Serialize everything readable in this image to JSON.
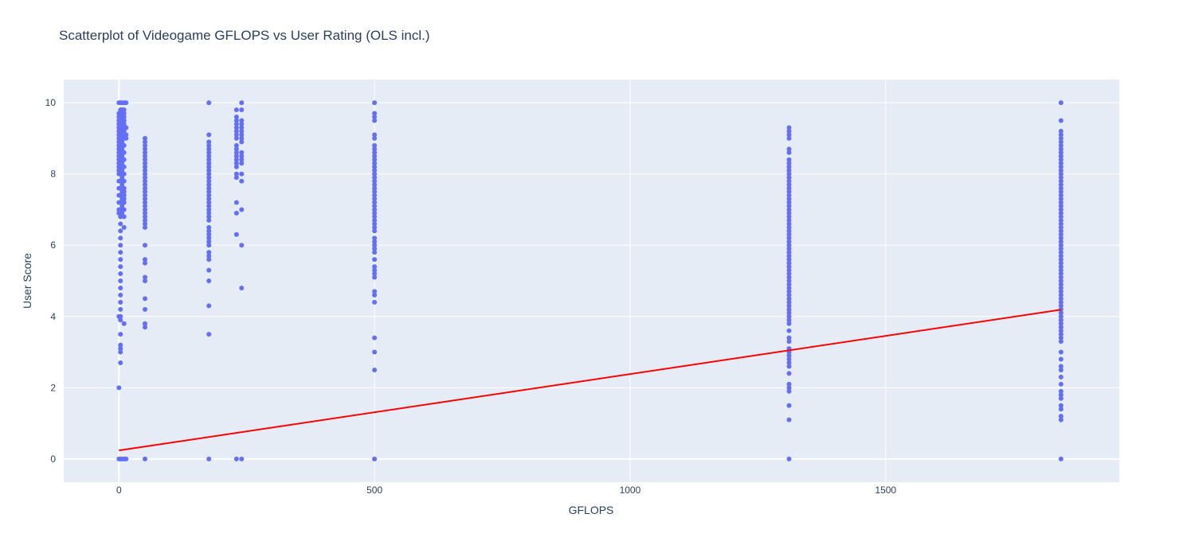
{
  "chart_data": {
    "type": "scatter",
    "title": "Scatterplot of Videogame GFLOPS vs User Rating (OLS incl.)",
    "xlabel": "GFLOPS",
    "ylabel": "User Score",
    "xlim": [
      -108,
      1957
    ],
    "ylim": [
      -0.65,
      10.65
    ],
    "x_ticks": [
      0,
      500,
      1000,
      1500
    ],
    "y_ticks": [
      0,
      2,
      4,
      6,
      8,
      10
    ],
    "grid": true,
    "legend": "none",
    "colors": {
      "plot_bg": "#e5ecf6",
      "grid": "#ffffff",
      "points": "#636efa",
      "trendline": "#ff0000",
      "text": "#2a3f5f"
    },
    "series": [
      {
        "type": "scatter",
        "groups": [
          {
            "x": 0,
            "y": [
              10,
              9.7,
              9.6,
              9.5,
              9.4,
              9.3,
              9.2,
              9.1,
              9.0,
              8.9,
              8.8,
              8.7,
              8.6,
              8.5,
              8.4,
              8.3,
              8.2,
              8.1,
              8.0,
              7.8,
              7.6,
              7.4,
              7.2,
              7.0,
              6.9,
              4.0,
              2.0,
              0
            ]
          },
          {
            "x": 3,
            "y": [
              10,
              9.8,
              9.6,
              9.4,
              9.2,
              9.0,
              8.8,
              8.6,
              8.4,
              8.2,
              8.0,
              7.8,
              7.6,
              7.4,
              7.2,
              7.0,
              6.8,
              6.6,
              6.4,
              6.2,
              6.0,
              5.8,
              5.6,
              5.4,
              5.2,
              5.0,
              4.8,
              4.6,
              4.4,
              4.2,
              4.0,
              3.9,
              3.5,
              3.2,
              3.1,
              3.0,
              2.7,
              0
            ]
          },
          {
            "x": 6,
            "y": [
              10,
              9.8,
              9.7,
              9.6,
              9.5,
              9.4,
              9.3,
              9.2,
              9.1,
              9.0,
              8.9,
              8.8,
              8.7,
              8.6,
              8.5,
              8.4,
              8.3,
              8.2,
              8.1,
              8.0,
              7.9,
              7.8,
              7.7,
              7.6,
              7.5,
              7.4,
              7.3,
              7.2,
              7.1,
              7.0,
              6.9,
              0
            ]
          },
          {
            "x": 10,
            "y": [
              10,
              9.8,
              9.7,
              9.6,
              9.5,
              9.4,
              9.3,
              9.2,
              9.1,
              9.0,
              8.8,
              8.6,
              8.4,
              8.2,
              8.0,
              7.8,
              7.6,
              7.5,
              7.4,
              7.3,
              7.2,
              7.0,
              6.8,
              6.5,
              3.8,
              0
            ]
          },
          {
            "x": 14,
            "y": [
              10,
              9.3,
              9.1,
              9.0,
              0
            ]
          },
          {
            "x": 51,
            "y": [
              9.0,
              8.9,
              8.8,
              8.7,
              8.6,
              8.5,
              8.4,
              8.3,
              8.2,
              8.1,
              8.0,
              7.9,
              7.8,
              7.7,
              7.6,
              7.5,
              7.4,
              7.3,
              7.2,
              7.1,
              7.0,
              6.9,
              6.8,
              6.7,
              6.6,
              6.5,
              6.0,
              5.6,
              5.5,
              5.1,
              5.0,
              4.5,
              4.2,
              3.8,
              3.7,
              0
            ]
          },
          {
            "x": 176,
            "y": [
              10,
              9.1,
              8.9,
              8.8,
              8.7,
              8.6,
              8.5,
              8.4,
              8.3,
              8.2,
              8.1,
              8.0,
              7.9,
              7.8,
              7.7,
              7.6,
              7.5,
              7.4,
              7.3,
              7.2,
              7.1,
              7.0,
              6.9,
              6.8,
              6.7,
              6.5,
              6.4,
              6.3,
              6.2,
              6.1,
              6.0,
              5.8,
              5.7,
              5.6,
              5.3,
              5.0,
              4.3,
              3.5,
              0
            ]
          },
          {
            "x": 230,
            "y": [
              9.8,
              9.6,
              9.5,
              9.4,
              9.3,
              9.2,
              9.1,
              9.0,
              8.8,
              8.7,
              8.6,
              8.5,
              8.4,
              8.3,
              8.2,
              8.0,
              7.9,
              7.2,
              6.9,
              6.3,
              0
            ]
          },
          {
            "x": 240,
            "y": [
              10,
              9.8,
              9.5,
              9.4,
              9.3,
              9.2,
              9.1,
              9.0,
              8.9,
              8.6,
              8.5,
              8.4,
              8.3,
              8.0,
              7.8,
              7.0,
              6.0,
              4.8,
              0
            ]
          },
          {
            "x": 500,
            "y": [
              10,
              9.7,
              9.6,
              9.5,
              9.1,
              9.0,
              8.8,
              8.7,
              8.6,
              8.5,
              8.4,
              8.3,
              8.2,
              8.1,
              8.0,
              7.9,
              7.8,
              7.7,
              7.6,
              7.5,
              7.4,
              7.3,
              7.2,
              7.1,
              7.0,
              6.9,
              6.8,
              6.7,
              6.6,
              6.5,
              6.4,
              6.2,
              6.1,
              6.0,
              5.9,
              5.8,
              5.6,
              5.4,
              5.3,
              5.2,
              5.1,
              4.7,
              4.6,
              4.4,
              3.4,
              3.0,
              2.5,
              0
            ]
          },
          {
            "x": 1311,
            "y": [
              9.3,
              9.2,
              9.1,
              9.0,
              8.7,
              8.6,
              8.4,
              8.3,
              8.2,
              8.1,
              8.0,
              7.9,
              7.8,
              7.7,
              7.6,
              7.5,
              7.4,
              7.3,
              7.2,
              7.1,
              7.0,
              6.9,
              6.8,
              6.7,
              6.6,
              6.5,
              6.4,
              6.3,
              6.2,
              6.1,
              6.0,
              5.9,
              5.8,
              5.7,
              5.6,
              5.5,
              5.4,
              5.3,
              5.2,
              5.1,
              5.0,
              4.9,
              4.8,
              4.7,
              4.6,
              4.5,
              4.4,
              4.3,
              4.2,
              4.1,
              4.0,
              3.9,
              3.8,
              3.6,
              3.4,
              3.3,
              3.1,
              3.0,
              2.9,
              2.8,
              2.7,
              2.6,
              2.4,
              2.1,
              2.0,
              1.9,
              1.5,
              1.1,
              0
            ]
          },
          {
            "x": 1843,
            "y": [
              10,
              9.5,
              9.2,
              9.1,
              9.0,
              8.9,
              8.8,
              8.7,
              8.6,
              8.5,
              8.4,
              8.3,
              8.2,
              8.1,
              8.0,
              7.9,
              7.8,
              7.7,
              7.6,
              7.5,
              7.4,
              7.3,
              7.2,
              7.1,
              7.0,
              6.9,
              6.8,
              6.7,
              6.6,
              6.5,
              6.4,
              6.3,
              6.2,
              6.1,
              6.0,
              5.9,
              5.8,
              5.7,
              5.6,
              5.5,
              5.4,
              5.3,
              5.2,
              5.1,
              5.0,
              4.9,
              4.8,
              4.7,
              4.6,
              4.5,
              4.4,
              4.3,
              4.2,
              4.1,
              4.0,
              3.9,
              3.8,
              3.7,
              3.6,
              3.5,
              3.4,
              3.3,
              3.0,
              2.8,
              2.6,
              2.5,
              2.3,
              2.1,
              1.9,
              1.8,
              1.7,
              1.5,
              1.4,
              1.2,
              1.1,
              0
            ]
          }
        ]
      },
      {
        "type": "line",
        "x": [
          0,
          1843
        ],
        "y": [
          0.24,
          4.19
        ]
      }
    ]
  }
}
